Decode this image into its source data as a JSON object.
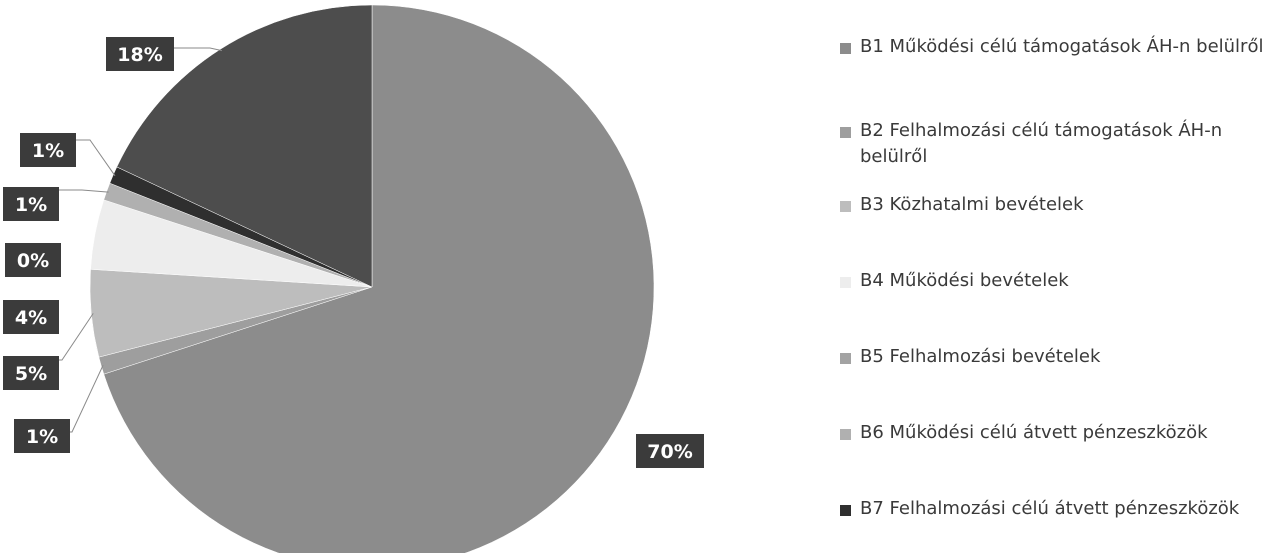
{
  "chart_data": {
    "type": "pie",
    "title": "",
    "slices": [
      {
        "label": "B1 Működési célú támogatások ÁH-n belülről",
        "value": 70,
        "display": "70%",
        "color": "#8c8c8c"
      },
      {
        "label": "B2 Felhalmozási célú támogatások ÁH-n belülről",
        "value": 1,
        "display": "1%",
        "color": "#9e9e9e"
      },
      {
        "label": "B3 Közhatalmi bevételek",
        "value": 5,
        "display": "5%",
        "color": "#bdbdbd"
      },
      {
        "label": "B4 Működési bevételek",
        "value": 4,
        "display": "4%",
        "color": "#ededed"
      },
      {
        "label": "B5 Felhalmozási bevételek",
        "value": 0,
        "display": "0%",
        "color": "#a3a3a3"
      },
      {
        "label": "B6 Működési célú átvett pénzeszközök",
        "value": 1,
        "display": "1%",
        "color": "#b0b0b0"
      },
      {
        "label": "B7 Felhalmozási célú átvett pénzeszközök",
        "value": 1,
        "display": "1%",
        "color": "#2f2f2f"
      },
      {
        "label": "",
        "value": 18,
        "display": "18%",
        "color": "#4d4d4d"
      }
    ],
    "legend_entries": [
      "B1 Működési célú támogatások ÁH-n belülről",
      "B2 Felhalmozási célú támogatások ÁH-n belülről",
      "B3 Közhatalmi bevételek",
      "B4 Működési bevételek",
      "B5 Felhalmozási bevételek",
      "B6 Működési célú átvett pénzeszközök",
      "B7 Felhalmozási célú átvett pénzeszközök"
    ],
    "legend_placement": "right",
    "label_box_color": "#3b3b3b",
    "label_text_color": "#ffffff"
  }
}
